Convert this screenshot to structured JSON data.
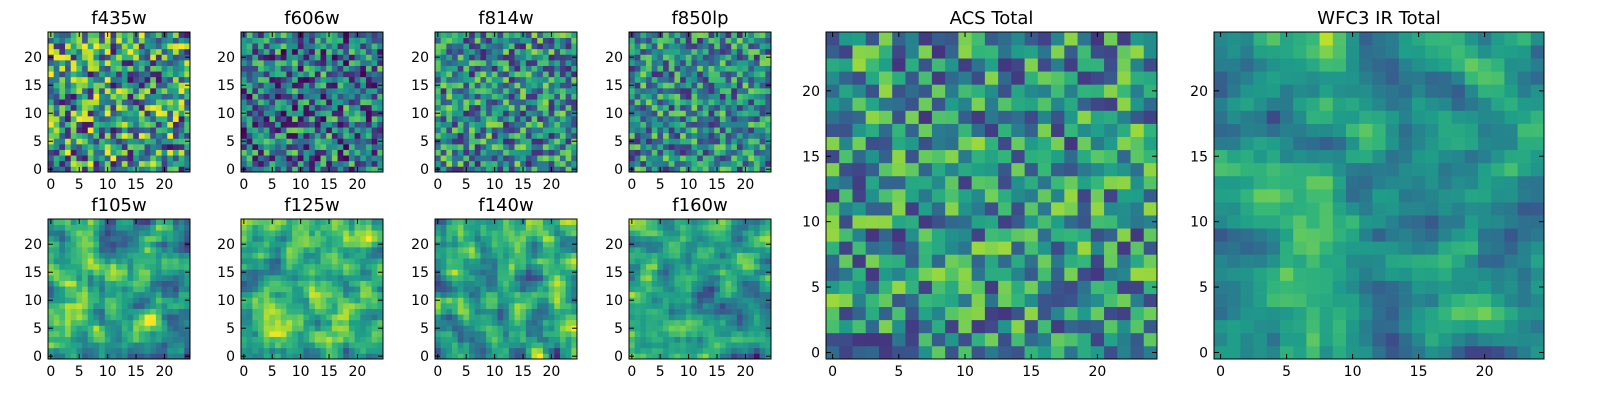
{
  "chart_data": [
    {
      "type": "heatmap",
      "title": "f435w",
      "xticks": [
        "0",
        "5",
        "10",
        "15",
        "20"
      ],
      "yticks": [
        "0",
        "5",
        "10",
        "15",
        "20"
      ],
      "xlim": [
        -0.5,
        24.5
      ],
      "ylim": [
        -0.5,
        24.5
      ],
      "grid": false,
      "colormap": "viridis",
      "values": [],
      "note_values": "25x25 per-pixel intensities, not individually readable"
    },
    {
      "type": "heatmap",
      "title": "f606w",
      "xticks": [
        "0",
        "5",
        "10",
        "15",
        "20"
      ],
      "yticks": [
        "0",
        "5",
        "10",
        "15",
        "20"
      ],
      "xlim": [
        -0.5,
        24.5
      ],
      "ylim": [
        -0.5,
        24.5
      ],
      "grid": false,
      "colormap": "viridis",
      "values": []
    },
    {
      "type": "heatmap",
      "title": "f814w",
      "xticks": [
        "0",
        "5",
        "10",
        "15",
        "20"
      ],
      "yticks": [
        "0",
        "5",
        "10",
        "15",
        "20"
      ],
      "xlim": [
        -0.5,
        24.5
      ],
      "ylim": [
        -0.5,
        24.5
      ],
      "grid": false,
      "colormap": "viridis",
      "values": []
    },
    {
      "type": "heatmap",
      "title": "f850lp",
      "xticks": [
        "0",
        "5",
        "10",
        "15",
        "20"
      ],
      "yticks": [
        "0",
        "5",
        "10",
        "15",
        "20"
      ],
      "xlim": [
        -0.5,
        24.5
      ],
      "ylim": [
        -0.5,
        24.5
      ],
      "grid": false,
      "colormap": "viridis",
      "values": []
    },
    {
      "type": "heatmap",
      "title": "f105w",
      "xticks": [
        "0",
        "5",
        "10",
        "15",
        "20"
      ],
      "yticks": [
        "0",
        "5",
        "10",
        "15",
        "20"
      ],
      "xlim": [
        -0.5,
        24.5
      ],
      "ylim": [
        -0.5,
        24.5
      ],
      "grid": false,
      "colormap": "viridis",
      "values": []
    },
    {
      "type": "heatmap",
      "title": "f125w",
      "xticks": [
        "0",
        "5",
        "10",
        "15",
        "20"
      ],
      "yticks": [
        "0",
        "5",
        "10",
        "15",
        "20"
      ],
      "xlim": [
        -0.5,
        24.5
      ],
      "ylim": [
        -0.5,
        24.5
      ],
      "grid": false,
      "colormap": "viridis",
      "values": []
    },
    {
      "type": "heatmap",
      "title": "f140w",
      "xticks": [
        "0",
        "5",
        "10",
        "15",
        "20"
      ],
      "yticks": [
        "0",
        "5",
        "10",
        "15",
        "20"
      ],
      "xlim": [
        -0.5,
        24.5
      ],
      "ylim": [
        -0.5,
        24.5
      ],
      "grid": false,
      "colormap": "viridis",
      "values": []
    },
    {
      "type": "heatmap",
      "title": "f160w",
      "xticks": [
        "0",
        "5",
        "10",
        "15",
        "20"
      ],
      "yticks": [
        "0",
        "5",
        "10",
        "15",
        "20"
      ],
      "xlim": [
        -0.5,
        24.5
      ],
      "ylim": [
        -0.5,
        24.5
      ],
      "grid": false,
      "colormap": "viridis",
      "values": []
    },
    {
      "type": "heatmap",
      "title": "ACS Total",
      "xticks": [
        "0",
        "5",
        "10",
        "15",
        "20"
      ],
      "yticks": [
        "0",
        "5",
        "10",
        "15",
        "20"
      ],
      "xlim": [
        -0.5,
        24.5
      ],
      "ylim": [
        -0.5,
        24.5
      ],
      "grid": false,
      "colormap": "viridis",
      "values": []
    },
    {
      "type": "heatmap",
      "title": "WFC3 IR Total",
      "xticks": [
        "0",
        "5",
        "10",
        "15",
        "20"
      ],
      "yticks": [
        "0",
        "5",
        "10",
        "15",
        "20"
      ],
      "xlim": [
        -0.5,
        24.5
      ],
      "ylim": [
        -0.5,
        24.5
      ],
      "grid": false,
      "colormap": "viridis",
      "values": []
    }
  ]
}
